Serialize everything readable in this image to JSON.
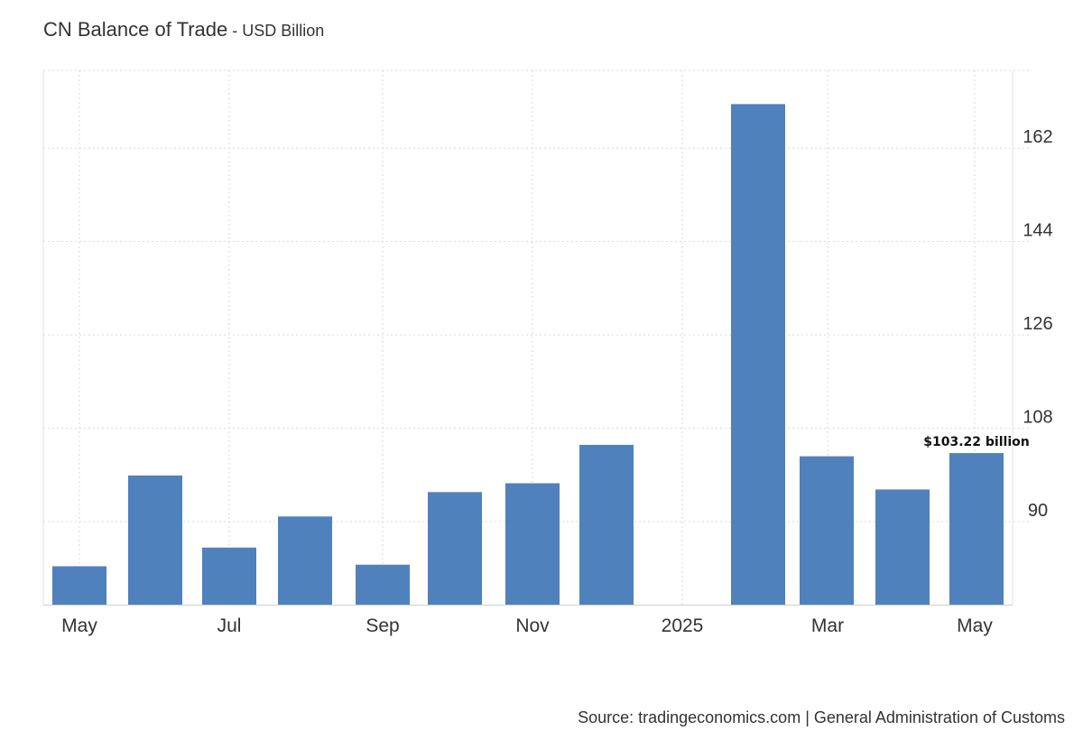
{
  "chart_data": {
    "type": "bar",
    "title": "CN Balance of Trade",
    "subtitle": "USD Billion",
    "source": "Source: tradingeconomics.com | General Administration of Customs",
    "x_tick_labels": [
      "May",
      "Jul",
      "Sep",
      "Nov",
      "2025",
      "Mar",
      "May"
    ],
    "y_ticks": [
      90,
      108,
      126,
      144,
      162
    ],
    "ylim": [
      74,
      177
    ],
    "grid": true,
    "bar_color": "#4f81bd",
    "categories": [
      "May 2024",
      "Jun 2024",
      "Jul 2024",
      "Aug 2024",
      "Sep 2024",
      "Oct 2024",
      "Nov 2024",
      "Dec 2024",
      "Feb 2025",
      "Mar 2025",
      "Apr 2025",
      "May 2025"
    ],
    "values": [
      81.4,
      98.9,
      85.0,
      91.0,
      81.7,
      95.7,
      97.4,
      104.8,
      170.5,
      102.6,
      96.2,
      103.22
    ],
    "last_value_label": "$103.22 billion"
  }
}
